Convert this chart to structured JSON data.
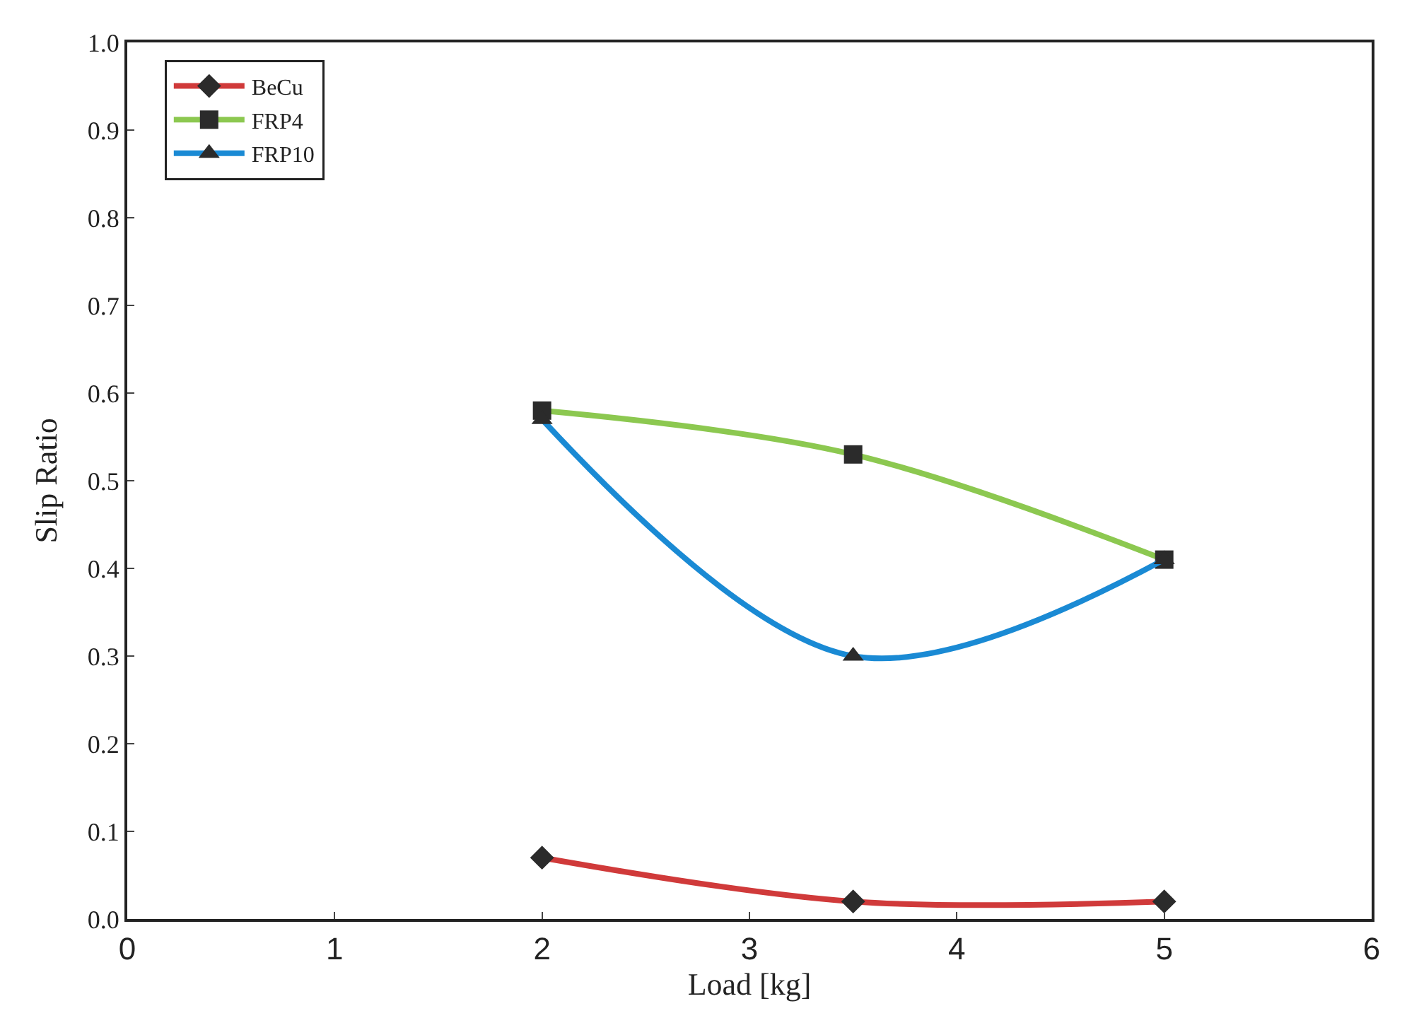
{
  "chart_data": {
    "type": "line",
    "xlabel": "Load [kg]",
    "ylabel": "Slip Ratio",
    "x": [
      2,
      3.5,
      5
    ],
    "series": [
      {
        "name": "BeCu",
        "color": "#d03a3a",
        "values": [
          0.07,
          0.02,
          0.02
        ],
        "marker": "diamond"
      },
      {
        "name": "FRP4",
        "color": "#8cc850",
        "values": [
          0.58,
          0.53,
          0.41
        ],
        "marker": "square"
      },
      {
        "name": "FRP10",
        "color": "#1a8ad4",
        "values": [
          0.57,
          0.3,
          0.41
        ],
        "marker": "triangle"
      }
    ],
    "xlim": [
      0,
      6
    ],
    "xticks": [
      0,
      1,
      2,
      3,
      4,
      5,
      6
    ],
    "ylim": [
      0,
      1
    ],
    "yticks": [
      {
        "value": 0,
        "label": "0.0"
      },
      {
        "value": 0.1,
        "label": "0.1"
      },
      {
        "value": 0.2,
        "label": "0.2"
      },
      {
        "value": 0.3,
        "label": "0.3"
      },
      {
        "value": 0.4,
        "label": "0.4"
      },
      {
        "value": 0.5,
        "label": "0.5"
      },
      {
        "value": 0.6,
        "label": "0.6"
      },
      {
        "value": 0.7,
        "label": "0.7"
      },
      {
        "value": 0.8,
        "label": "0.8"
      },
      {
        "value": 0.9,
        "label": "0.9"
      },
      {
        "value": 1,
        "label": "1.0"
      }
    ],
    "legend": "top left",
    "line_style": "solid"
  }
}
